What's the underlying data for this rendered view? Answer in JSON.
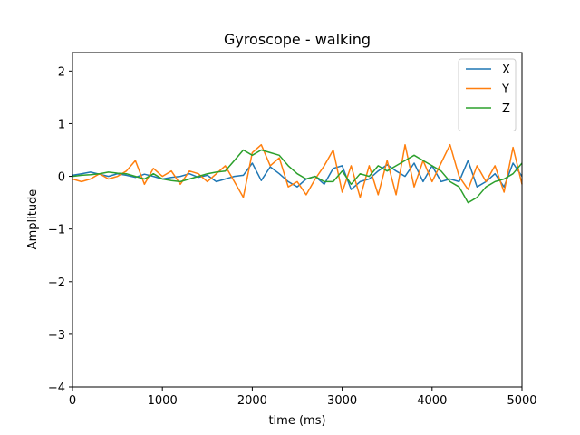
{
  "chart_data": {
    "type": "line",
    "title": "Gyroscope - walking",
    "xlabel": "time (ms)",
    "ylabel": "Amplitude",
    "xlim": [
      0,
      5000
    ],
    "ylim": [
      -4,
      2.35
    ],
    "xticks": [
      0,
      1000,
      2000,
      3000,
      4000,
      5000
    ],
    "xtick_labels": [
      "0",
      "1000",
      "2000",
      "3000",
      "4000",
      "5000"
    ],
    "yticks": [
      -4,
      -3,
      -2,
      -1,
      0,
      1,
      2
    ],
    "ytick_labels": [
      "−4",
      "−3",
      "−2",
      "−1",
      "0",
      "1",
      "2"
    ],
    "grid": false,
    "legend_position": "top-right",
    "series": [
      {
        "name": "X",
        "color": "#1f77b4",
        "x": [
          0,
          100,
          200,
          300,
          400,
          500,
          600,
          700,
          800,
          900,
          1000,
          1100,
          1200,
          1300,
          1400,
          1500,
          1600,
          1700,
          1800,
          1900,
          2000,
          2100,
          2200,
          2300,
          2400,
          2500,
          2600,
          2700,
          2800,
          2900,
          3000,
          3100,
          3200,
          3300,
          3400,
          3500,
          3600,
          3700,
          3800,
          3900,
          4000,
          4100,
          4200,
          4300,
          4400,
          4500,
          4600,
          4700,
          4800,
          4900,
          5000
        ],
        "y": [
          0.02,
          0.05,
          0.08,
          0.04,
          0.0,
          0.05,
          0.02,
          -0.02,
          0.04,
          0.0,
          -0.05,
          -0.02,
          0.0,
          0.05,
          -0.02,
          0.02,
          -0.1,
          -0.05,
          0.0,
          0.02,
          0.25,
          -0.08,
          0.18,
          0.05,
          -0.1,
          -0.2,
          -0.05,
          0.0,
          -0.15,
          0.15,
          0.2,
          -0.25,
          -0.1,
          -0.05,
          0.1,
          0.22,
          0.1,
          0.0,
          0.25,
          -0.1,
          0.2,
          -0.1,
          -0.05,
          -0.1,
          0.3,
          -0.2,
          -0.1,
          0.05,
          -0.2,
          0.25,
          0.0
        ]
      },
      {
        "name": "Y",
        "color": "#ff7f0e",
        "x": [
          0,
          100,
          200,
          300,
          400,
          500,
          600,
          700,
          800,
          900,
          1000,
          1100,
          1200,
          1300,
          1400,
          1500,
          1600,
          1700,
          1800,
          1900,
          2000,
          2100,
          2200,
          2300,
          2400,
          2500,
          2600,
          2700,
          2800,
          2900,
          3000,
          3100,
          3200,
          3300,
          3400,
          3500,
          3600,
          3700,
          3800,
          3900,
          4000,
          4100,
          4200,
          4300,
          4400,
          4500,
          4600,
          4700,
          4800,
          4900,
          5000
        ],
        "y": [
          -0.05,
          -0.1,
          -0.05,
          0.05,
          -0.05,
          0.0,
          0.1,
          0.3,
          -0.15,
          0.15,
          0.0,
          0.1,
          -0.15,
          0.1,
          0.05,
          -0.1,
          0.05,
          0.2,
          -0.1,
          -0.4,
          0.45,
          0.6,
          0.2,
          0.35,
          -0.2,
          -0.1,
          -0.35,
          -0.05,
          0.2,
          0.5,
          -0.3,
          0.2,
          -0.4,
          0.2,
          -0.35,
          0.3,
          -0.35,
          0.6,
          -0.2,
          0.3,
          -0.1,
          0.25,
          0.6,
          0.0,
          -0.25,
          0.2,
          -0.1,
          0.2,
          -0.3,
          0.55,
          -0.15
        ]
      },
      {
        "name": "Z",
        "color": "#2ca02c",
        "x": [
          0,
          100,
          200,
          300,
          400,
          500,
          600,
          700,
          800,
          900,
          1000,
          1100,
          1200,
          1300,
          1400,
          1500,
          1600,
          1700,
          1800,
          1900,
          2000,
          2100,
          2200,
          2300,
          2400,
          2500,
          2600,
          2700,
          2800,
          2900,
          3000,
          3100,
          3200,
          3300,
          3400,
          3500,
          3600,
          3700,
          3800,
          3900,
          4000,
          4100,
          4200,
          4300,
          4400,
          4500,
          4600,
          4700,
          4800,
          4900,
          5000
        ],
        "y": [
          0.0,
          0.02,
          0.03,
          0.05,
          0.08,
          0.06,
          0.05,
          0.0,
          -0.05,
          0.05,
          -0.05,
          -0.08,
          -0.1,
          -0.05,
          0.0,
          0.05,
          0.08,
          0.1,
          0.3,
          0.5,
          0.4,
          0.5,
          0.45,
          0.4,
          0.2,
          0.05,
          -0.05,
          0.0,
          -0.1,
          -0.1,
          0.1,
          -0.15,
          0.05,
          0.0,
          0.2,
          0.1,
          0.2,
          0.3,
          0.4,
          0.3,
          0.2,
          0.1,
          -0.1,
          -0.2,
          -0.5,
          -0.4,
          -0.2,
          -0.1,
          -0.05,
          0.05,
          0.25
        ]
      }
    ]
  }
}
